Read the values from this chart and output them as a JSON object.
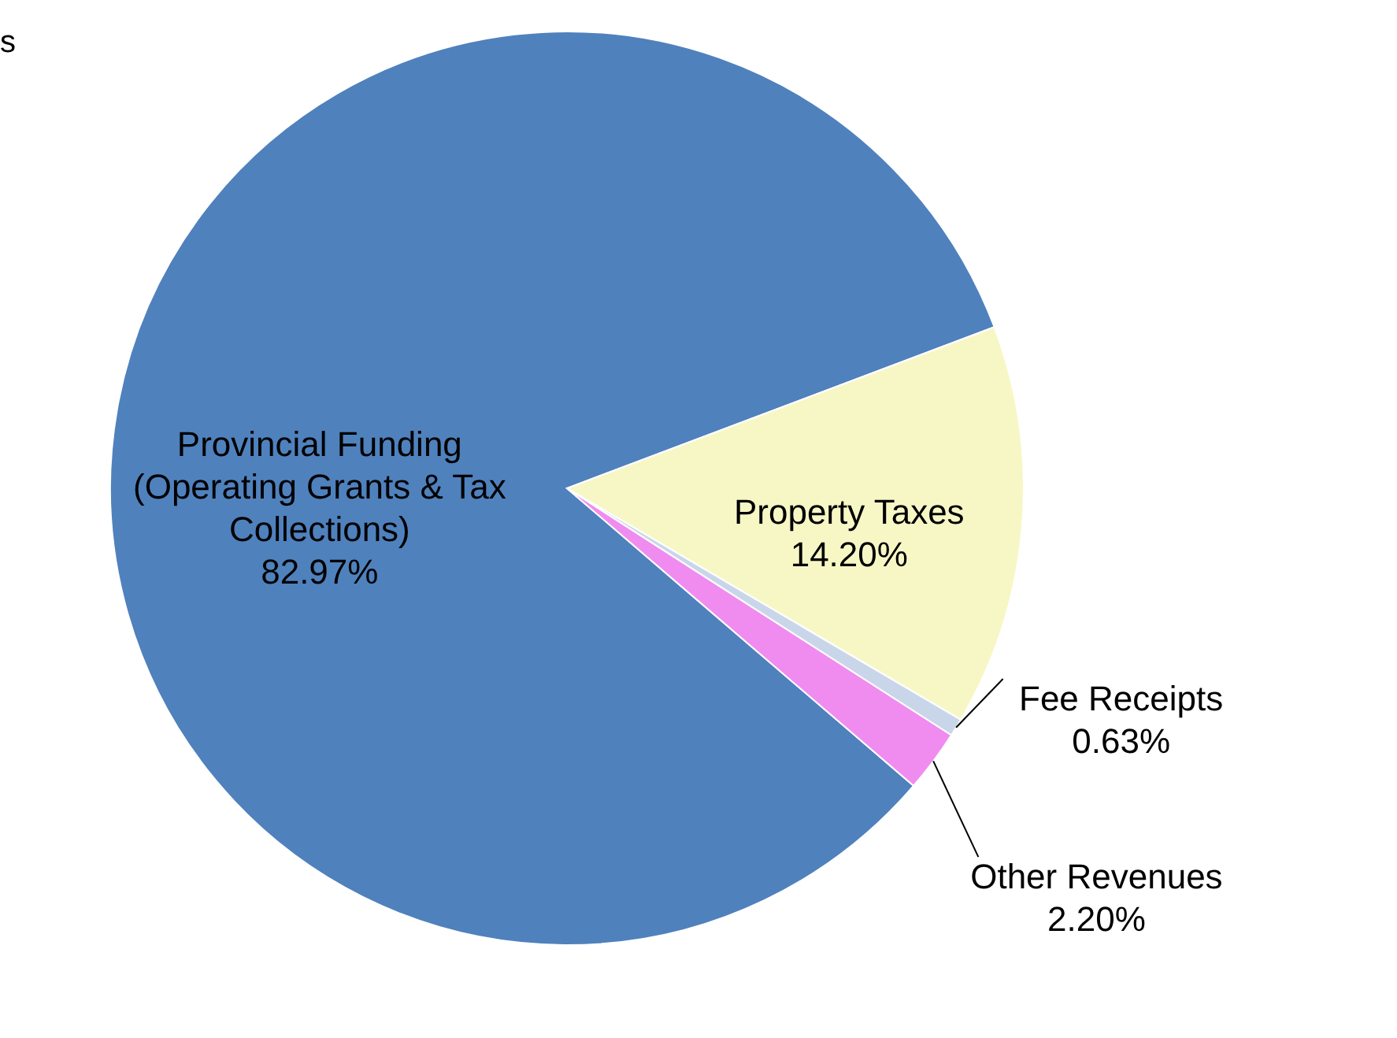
{
  "chart_data": {
    "type": "pie",
    "categories": [
      "Provincial Funding (Operating Grants & Tax Collections)",
      "Property Taxes",
      "Fee Receipts",
      "Other Revenues"
    ],
    "values": [
      82.97,
      14.2,
      0.63,
      2.2
    ],
    "value_labels": [
      "82.97%",
      "14.20%",
      "0.63%",
      "2.20%"
    ],
    "colors": [
      "#4f81bd",
      "#f7f7c6",
      "#c9d6ea",
      "#f08cf0"
    ],
    "annotations": [
      "s"
    ]
  }
}
